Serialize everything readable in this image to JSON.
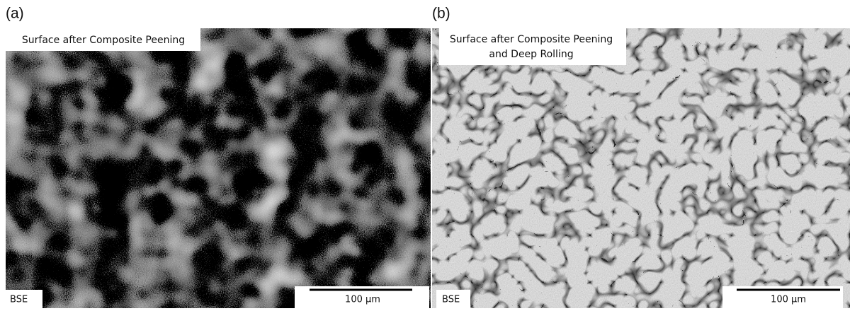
{
  "panels": [
    {
      "label": "(a)",
      "caption": [
        "Surface after Composite Peening"
      ],
      "detector": "BSE",
      "scale_bar": "100 µm"
    },
    {
      "label": "(b)",
      "caption": [
        "Surface after Composite Peening",
        "and Deep Rolling"
      ],
      "detector": "BSE",
      "scale_bar": "100 µm"
    }
  ]
}
